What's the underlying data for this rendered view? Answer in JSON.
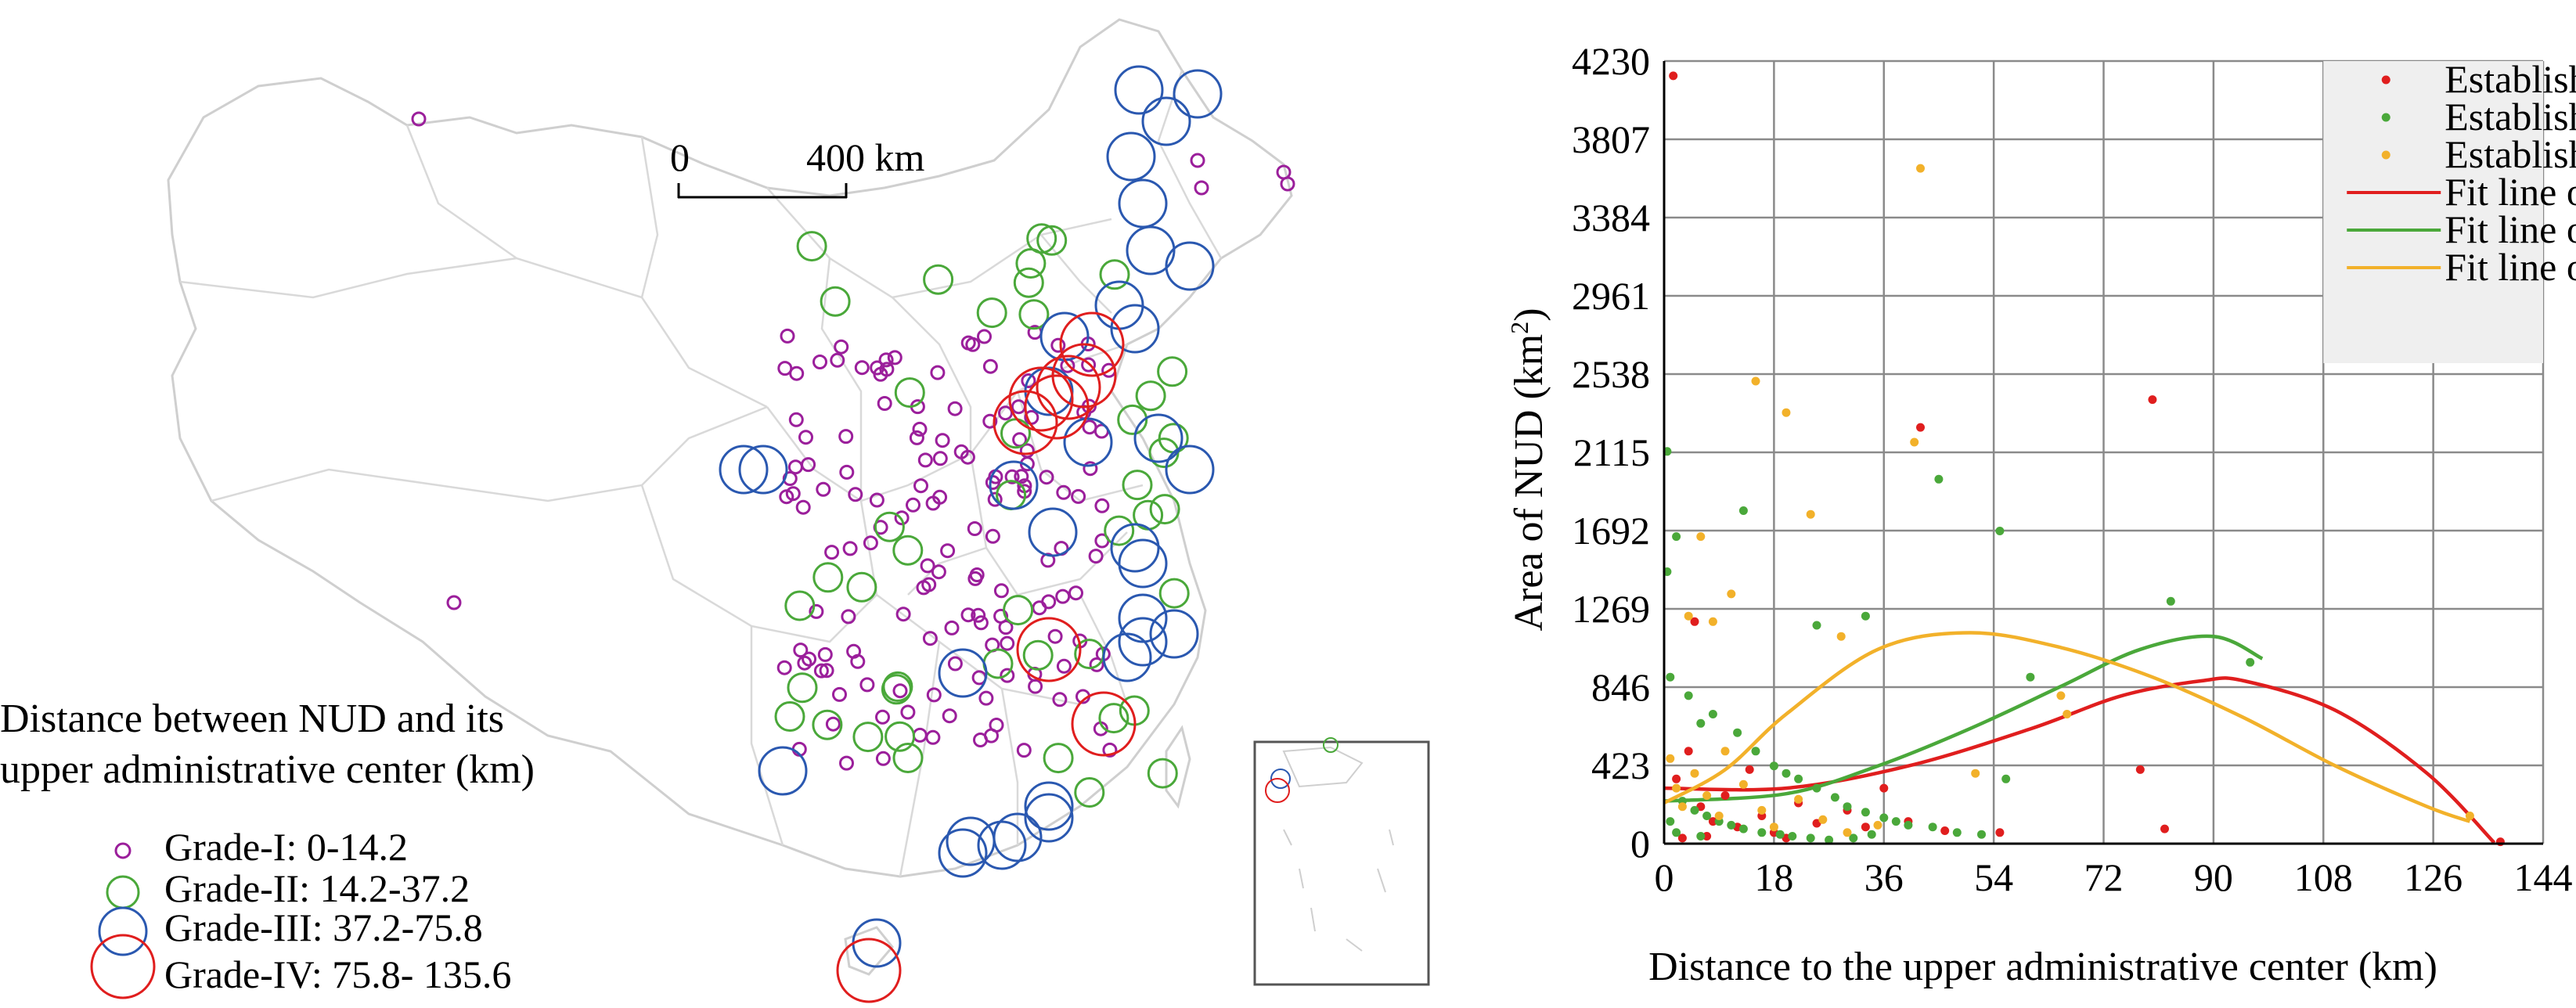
{
  "map": {
    "scale_zero": "0",
    "scale_label": "400 km",
    "legend_title_line1": "Distance between NUD and its",
    "legend_title_line2": "upper administrative center (km)",
    "legend_items": [
      {
        "label": "Grade-I: 0-14.2",
        "color": "#9b1f9b"
      },
      {
        "label": "Grade-II: 14.2-37.2",
        "color": "#4aa83a"
      },
      {
        "label": "Grade-III: 37.2-75.8",
        "color": "#2a58b0"
      },
      {
        "label": "Grade-IV: 75.8- 135.6",
        "color": "#e01e1e"
      }
    ]
  },
  "chart_data": {
    "type": "scatter",
    "xlabel": "Distance to the upper administrative center (km)",
    "ylabel_main": "Area of NUD (km",
    "ylabel_sup": "2",
    "ylabel_end": ")",
    "xlim": [
      0,
      144
    ],
    "ylim": [
      0,
      4230
    ],
    "x_ticks": [
      "0",
      "18",
      "36",
      "54",
      "72",
      "90",
      "108",
      "126",
      "144"
    ],
    "y_ticks": [
      "0",
      "423",
      "846",
      "1269",
      "1692",
      "2115",
      "2538",
      "2961",
      "3384",
      "3807",
      "4230"
    ],
    "grid": true,
    "legend_position": "top-right",
    "legend": [
      {
        "label": "Established in LGS",
        "kind": "marker",
        "color": "#e01e1e"
      },
      {
        "label": "Established in HES",
        "kind": "marker",
        "color": "#4aa83a"
      },
      {
        "label": "Established in SAS",
        "kind": "marker",
        "color": "#f2b12a"
      },
      {
        "label": "Fit line of LGS",
        "kind": "line",
        "color": "#e01e1e"
      },
      {
        "label": "Fit line of HES",
        "kind": "line",
        "color": "#4aa83a"
      },
      {
        "label": "Fit line of SAS",
        "kind": "line",
        "color": "#f2b12a"
      }
    ],
    "series": [
      {
        "name": "Established in LGS",
        "color": "#e01e1e",
        "points": [
          [
            1.5,
            4150
          ],
          [
            5,
            1200
          ],
          [
            42,
            2250
          ],
          [
            80,
            2400
          ],
          [
            78,
            400
          ],
          [
            82,
            80
          ],
          [
            137,
            10
          ],
          [
            2,
            350
          ],
          [
            4,
            500
          ],
          [
            6,
            200
          ],
          [
            8,
            120
          ],
          [
            10,
            260
          ],
          [
            12,
            90
          ],
          [
            14,
            400
          ],
          [
            16,
            150
          ],
          [
            18,
            60
          ],
          [
            22,
            220
          ],
          [
            25,
            110
          ],
          [
            30,
            180
          ],
          [
            33,
            90
          ],
          [
            36,
            300
          ],
          [
            40,
            120
          ],
          [
            46,
            70
          ],
          [
            55,
            60
          ],
          [
            3,
            30
          ],
          [
            7,
            40
          ],
          [
            20,
            30
          ]
        ]
      },
      {
        "name": "Established in HES",
        "color": "#4aa83a",
        "points": [
          [
            0.5,
            2120
          ],
          [
            0.5,
            1470
          ],
          [
            2,
            1660
          ],
          [
            13,
            1800
          ],
          [
            25,
            1180
          ],
          [
            33,
            1230
          ],
          [
            45,
            1970
          ],
          [
            55,
            1690
          ],
          [
            83,
            1310
          ],
          [
            96,
            980
          ],
          [
            1,
            900
          ],
          [
            4,
            800
          ],
          [
            6,
            650
          ],
          [
            8,
            700
          ],
          [
            12,
            600
          ],
          [
            15,
            500
          ],
          [
            18,
            420
          ],
          [
            20,
            380
          ],
          [
            22,
            350
          ],
          [
            25,
            300
          ],
          [
            28,
            250
          ],
          [
            30,
            200
          ],
          [
            33,
            170
          ],
          [
            36,
            140
          ],
          [
            38,
            120
          ],
          [
            40,
            100
          ],
          [
            44,
            90
          ],
          [
            48,
            60
          ],
          [
            52,
            50
          ],
          [
            56,
            350
          ],
          [
            60,
            900
          ],
          [
            3,
            230
          ],
          [
            5,
            180
          ],
          [
            7,
            150
          ],
          [
            9,
            120
          ],
          [
            11,
            100
          ],
          [
            13,
            80
          ],
          [
            16,
            60
          ],
          [
            19,
            50
          ],
          [
            21,
            40
          ],
          [
            24,
            30
          ],
          [
            27,
            20
          ],
          [
            31,
            30
          ],
          [
            34,
            50
          ],
          [
            2,
            60
          ],
          [
            1,
            120
          ],
          [
            6,
            40
          ]
        ]
      },
      {
        "name": "Established in SAS",
        "color": "#f2b12a",
        "points": [
          [
            1,
            460
          ],
          [
            4,
            1230
          ],
          [
            6,
            1660
          ],
          [
            8,
            1200
          ],
          [
            11,
            1350
          ],
          [
            15,
            2500
          ],
          [
            20,
            2330
          ],
          [
            24,
            1780
          ],
          [
            29,
            1120
          ],
          [
            41,
            2170
          ],
          [
            42,
            3650
          ],
          [
            51,
            380
          ],
          [
            65,
            800
          ],
          [
            66,
            700
          ],
          [
            132,
            150
          ],
          [
            2,
            300
          ],
          [
            3,
            200
          ],
          [
            5,
            380
          ],
          [
            7,
            260
          ],
          [
            9,
            150
          ],
          [
            10,
            500
          ],
          [
            13,
            320
          ],
          [
            16,
            180
          ],
          [
            18,
            90
          ],
          [
            22,
            240
          ],
          [
            26,
            130
          ],
          [
            30,
            60
          ],
          [
            35,
            100
          ]
        ]
      }
    ],
    "fit_lines": [
      {
        "name": "Fit line of LGS",
        "color": "#e01e1e",
        "x_range": [
          0,
          136
        ],
        "knots": [
          [
            0,
            300
          ],
          [
            20,
            300
          ],
          [
            40,
            420
          ],
          [
            60,
            620
          ],
          [
            75,
            800
          ],
          [
            88,
            880
          ],
          [
            95,
            880
          ],
          [
            110,
            720
          ],
          [
            125,
            380
          ],
          [
            136,
            5
          ]
        ]
      },
      {
        "name": "Fit line of HES",
        "color": "#4aa83a",
        "x_range": [
          0,
          98
        ],
        "knots": [
          [
            0,
            230
          ],
          [
            20,
            270
          ],
          [
            35,
            420
          ],
          [
            50,
            620
          ],
          [
            65,
            850
          ],
          [
            78,
            1050
          ],
          [
            90,
            1120
          ],
          [
            98,
            1000
          ]
        ]
      },
      {
        "name": "Fit line of SAS",
        "color": "#f2b12a",
        "x_range": [
          0,
          132
        ],
        "knots": [
          [
            0,
            220
          ],
          [
            10,
            400
          ],
          [
            20,
            700
          ],
          [
            35,
            1050
          ],
          [
            50,
            1140
          ],
          [
            65,
            1060
          ],
          [
            80,
            900
          ],
          [
            95,
            680
          ],
          [
            110,
            420
          ],
          [
            125,
            200
          ],
          [
            132,
            120
          ]
        ]
      }
    ]
  }
}
